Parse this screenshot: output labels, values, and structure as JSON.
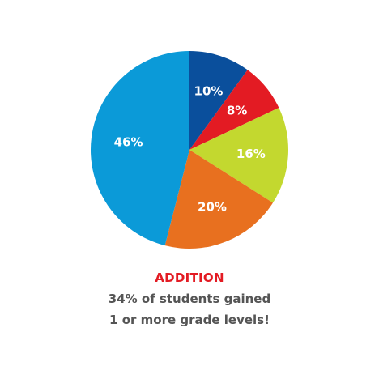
{
  "chart_data": {
    "type": "pie",
    "start_angle_deg": 0,
    "direction": "clockwise",
    "slices": [
      {
        "label": "10%",
        "value": 10,
        "color": "#0a4f9c"
      },
      {
        "label": "8%",
        "value": 8,
        "color": "#e31b23"
      },
      {
        "label": "16%",
        "value": 16,
        "color": "#c3d82f"
      },
      {
        "label": "20%",
        "value": 20,
        "color": "#e8701f"
      },
      {
        "label": "46%",
        "value": 46,
        "color": "#0b9ad8"
      }
    ]
  },
  "caption": {
    "title": "ADDITION",
    "line1": "34% of students gained",
    "line2": "1 or more grade levels!"
  },
  "colors": {
    "title": "#e31b23",
    "body_text": "#555555"
  }
}
